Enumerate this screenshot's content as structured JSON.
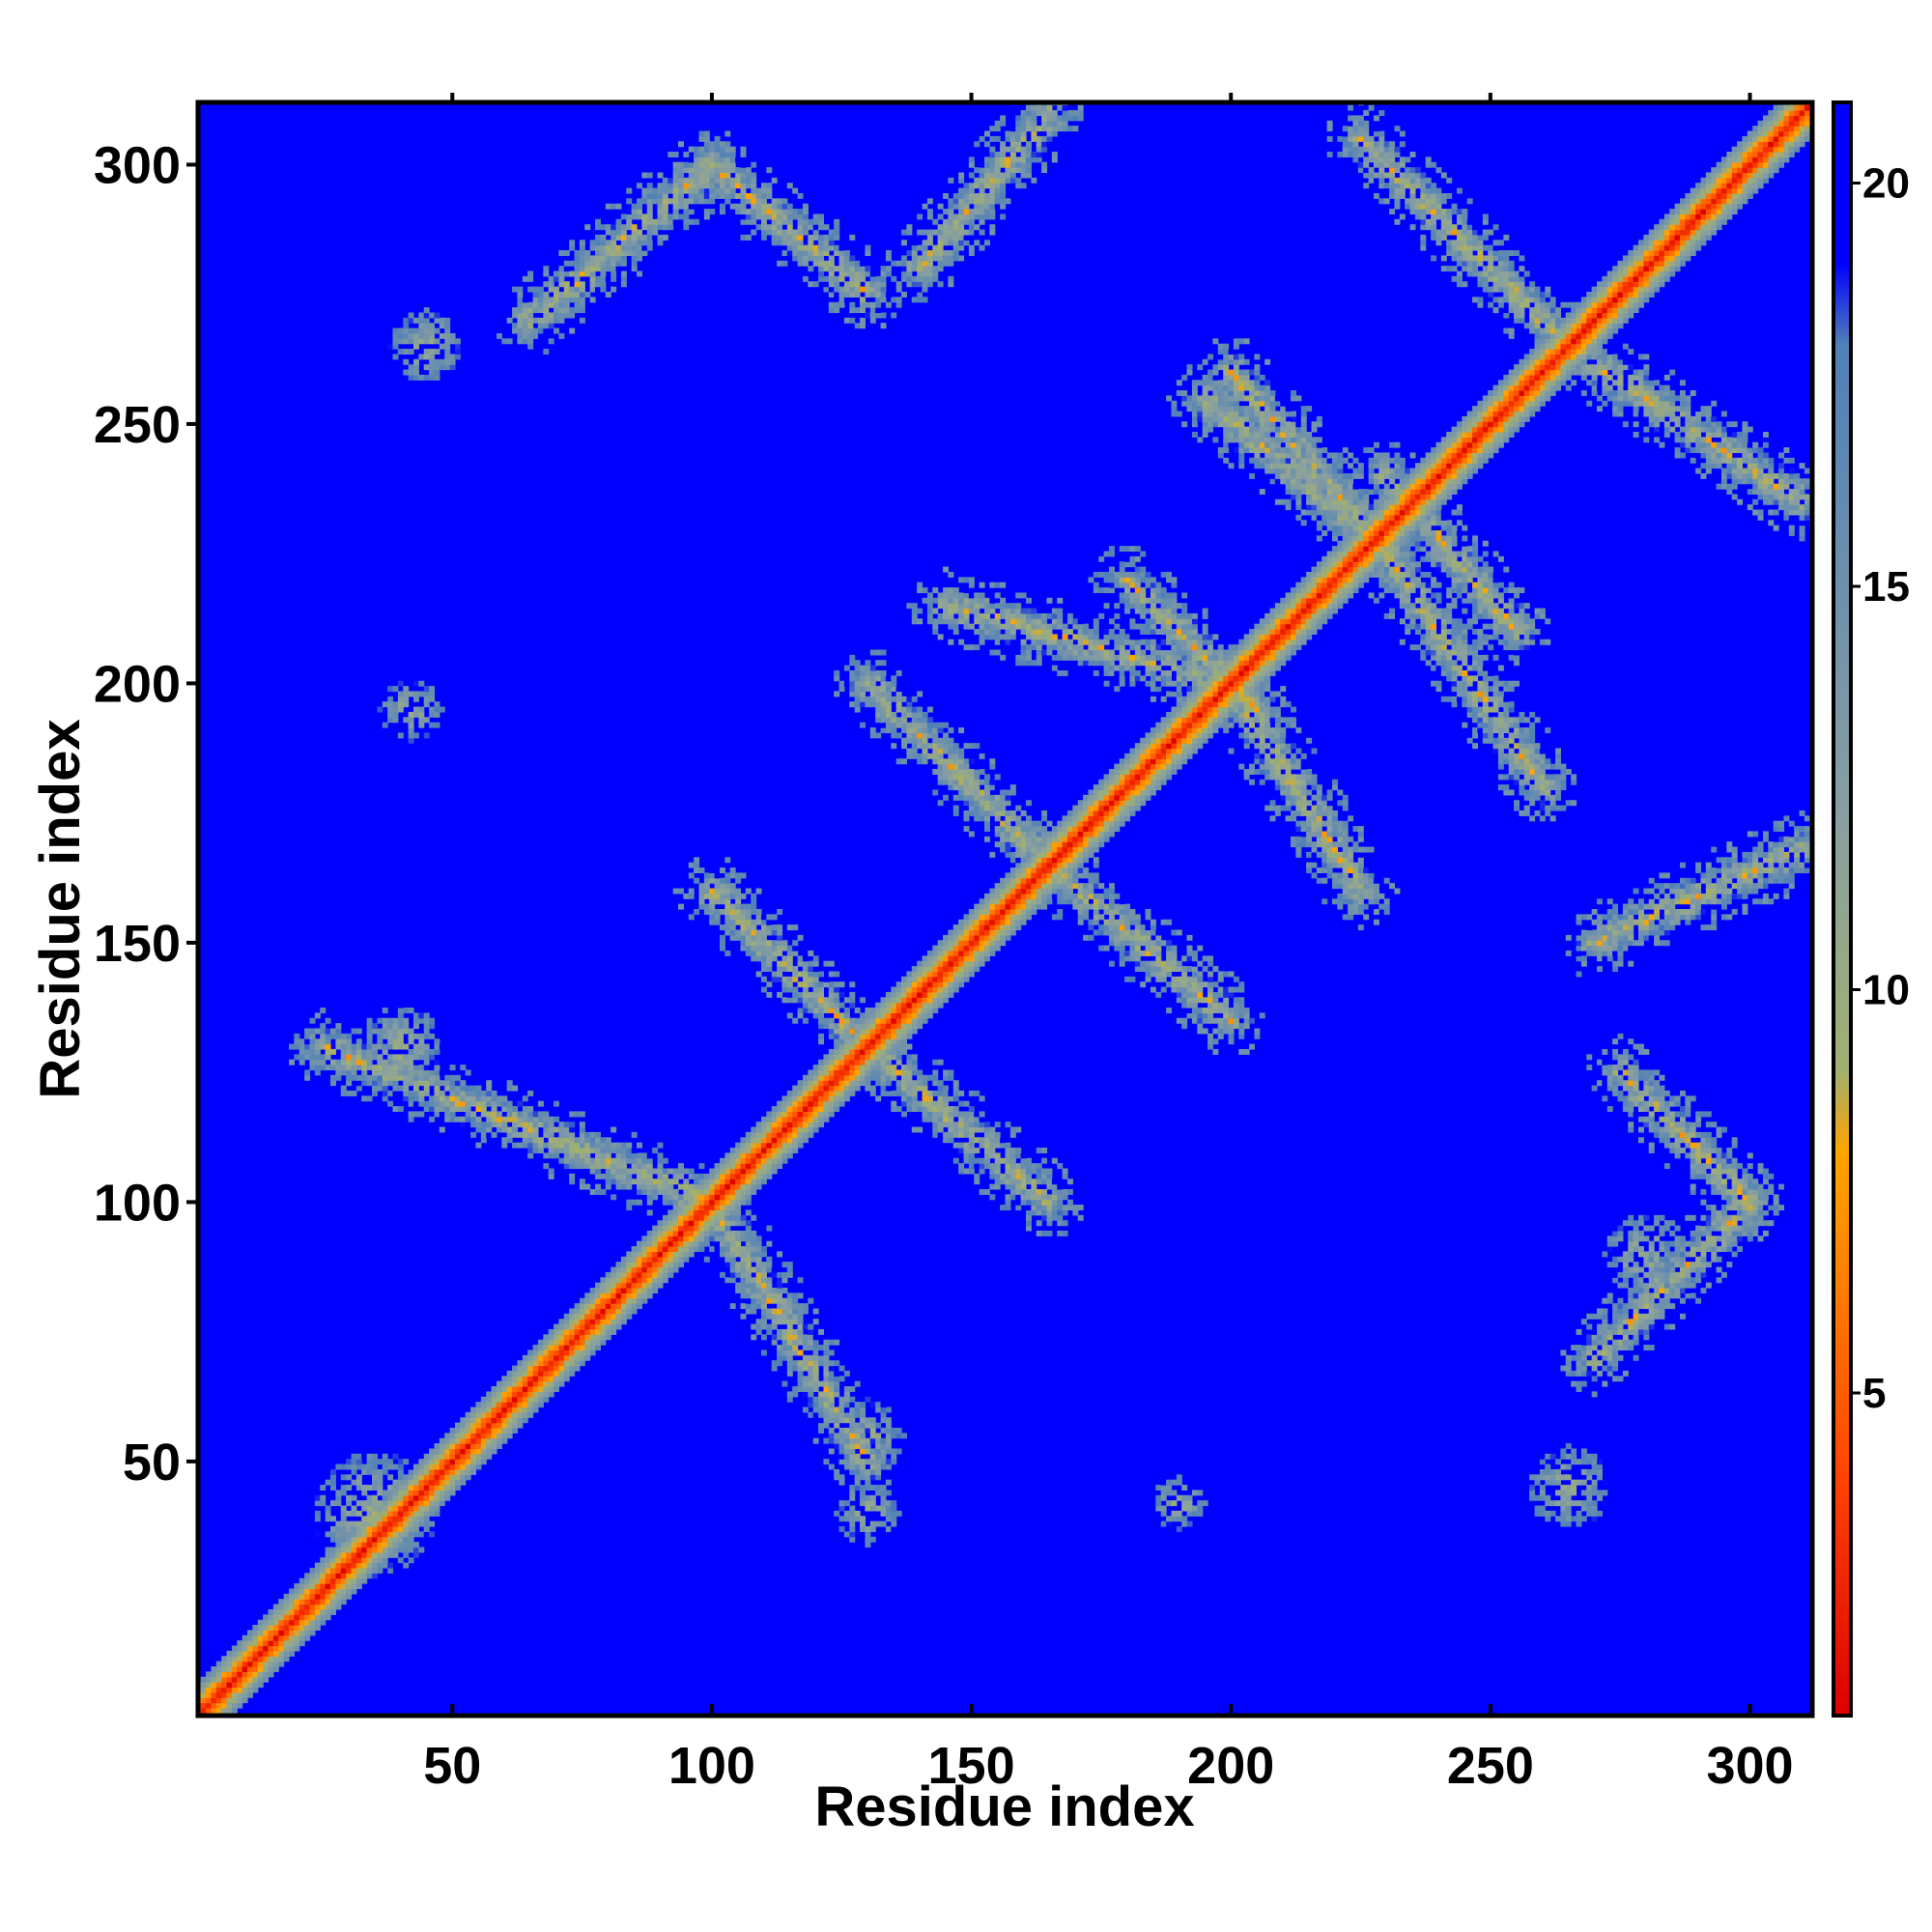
{
  "chart_data": {
    "type": "heatmap",
    "title": "",
    "xlabel": "Residue index",
    "ylabel": "Residue index",
    "n_residues": 312,
    "xlim": [
      1,
      312
    ],
    "ylim": [
      1,
      312
    ],
    "x_ticks": [
      50,
      100,
      150,
      200,
      250,
      300
    ],
    "y_ticks": [
      50,
      100,
      150,
      200,
      250,
      300
    ],
    "colorbar": {
      "range": [
        1,
        21
      ],
      "ticks": [
        5,
        10,
        15,
        20
      ],
      "colors": [
        {
          "value": 1,
          "color": "#dd0000"
        },
        {
          "value": 4,
          "color": "#ff4400"
        },
        {
          "value": 8,
          "color": "#ffa500"
        },
        {
          "value": 9,
          "color": "#a0b070"
        },
        {
          "value": 12,
          "color": "#8aa0a0"
        },
        {
          "value": 18,
          "color": "#5080b8"
        },
        {
          "value": 19,
          "color": "#0000ff"
        },
        {
          "value": 21,
          "color": "#0000ff"
        }
      ]
    },
    "background_value": 21,
    "diagonal": {
      "from": 1,
      "to": 312,
      "core_value": 1,
      "width": 6
    },
    "contact_bands": [
      {
        "from": [
          100,
          100
        ],
        "to": [
          25,
          130
        ],
        "width": 4
      },
      {
        "from": [
          100,
          100
        ],
        "to": [
          130,
          50
        ],
        "width": 4
      },
      {
        "from": [
          130,
          130
        ],
        "to": [
          100,
          160
        ],
        "width": 4
      },
      {
        "from": [
          130,
          130
        ],
        "to": [
          165,
          100
        ],
        "width": 4
      },
      {
        "from": [
          165,
          165
        ],
        "to": [
          130,
          200
        ],
        "width": 4
      },
      {
        "from": [
          165,
          165
        ],
        "to": [
          200,
          135
        ],
        "width": 4
      },
      {
        "from": [
          200,
          200
        ],
        "to": [
          145,
          215
        ],
        "width": 4
      },
      {
        "from": [
          200,
          200
        ],
        "to": [
          225,
          160
        ],
        "width": 4
      },
      {
        "from": [
          228,
          228
        ],
        "to": [
          200,
          260
        ],
        "width": 4
      },
      {
        "from": [
          228,
          228
        ],
        "to": [
          260,
          180
        ],
        "width": 4
      },
      {
        "from": [
          265,
          265
        ],
        "to": [
          225,
          305
        ],
        "width": 4
      },
      {
        "from": [
          265,
          265
        ],
        "to": [
          310,
          235
        ],
        "width": 4
      },
      {
        "from": [
          65,
          270
        ],
        "to": [
          100,
          300
        ],
        "width": 4
      },
      {
        "from": [
          100,
          300
        ],
        "to": [
          130,
          275
        ],
        "width": 4
      },
      {
        "from": [
          140,
          280
        ],
        "to": [
          165,
          310
        ],
        "width": 4
      },
      {
        "from": [
          195,
          255
        ],
        "to": [
          225,
          230
        ],
        "width": 4
      },
      {
        "from": [
          180,
          220
        ],
        "to": [
          205,
          195
        ],
        "width": 4
      },
      {
        "from": [
          275,
          125
        ],
        "to": [
          300,
          100
        ],
        "width": 4
      },
      {
        "from": [
          270,
          70
        ],
        "to": [
          300,
          100
        ],
        "width": 4
      },
      {
        "from": [
          270,
          150
        ],
        "to": [
          310,
          168
        ],
        "width": 4
      },
      {
        "from": [
          230,
          240
        ],
        "to": [
          255,
          210
        ],
        "width": 4
      }
    ],
    "contact_patches": [
      {
        "center": [
          45,
          265
        ],
        "radius": 7
      },
      {
        "center": [
          42,
          195
        ],
        "radius": 6
      },
      {
        "center": [
          35,
          40
        ],
        "radius": 12
      },
      {
        "center": [
          130,
          40
        ],
        "radius": 6
      },
      {
        "center": [
          190,
          42
        ],
        "radius": 5
      },
      {
        "center": [
          265,
          45
        ],
        "radius": 8
      },
      {
        "center": [
          130,
          55
        ],
        "radius": 7
      },
      {
        "center": [
          40,
          130
        ],
        "radius": 8
      },
      {
        "center": [
          280,
          90
        ],
        "radius": 8
      }
    ]
  }
}
